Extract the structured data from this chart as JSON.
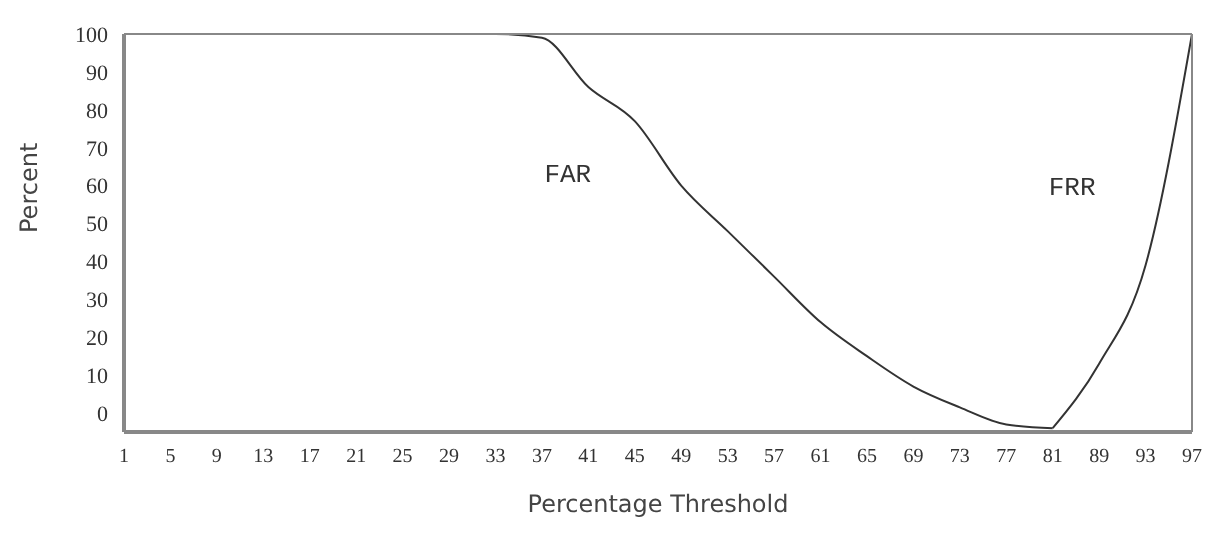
{
  "chart_data": {
    "type": "line",
    "xlabel": "Percentage Threshold",
    "ylabel": "Percent",
    "categories": [
      "1",
      "5",
      "9",
      "13",
      "17",
      "21",
      "25",
      "29",
      "33",
      "37",
      "41",
      "45",
      "49",
      "53",
      "57",
      "61",
      "65",
      "69",
      "73",
      "77",
      "81",
      "89",
      "93",
      "97"
    ],
    "series": [
      {
        "name": "FAR",
        "color": "#333333",
        "values": [
          100,
          100,
          100,
          100,
          100,
          100,
          100,
          100,
          100,
          99,
          86,
          77,
          60,
          48,
          36,
          24,
          15,
          7,
          1.5,
          -3,
          -4,
          null,
          null,
          null
        ]
      },
      {
        "name": "FRR",
        "color": "#333333",
        "values": [
          null,
          null,
          null,
          null,
          null,
          null,
          null,
          null,
          null,
          null,
          null,
          null,
          null,
          null,
          null,
          null,
          null,
          null,
          null,
          null,
          -4,
          13,
          39,
          100
        ]
      }
    ],
    "ylim": [
      -5,
      100
    ],
    "yticks": [
      0,
      10,
      20,
      30,
      40,
      50,
      60,
      70,
      80,
      90,
      100
    ],
    "marker": "none",
    "line_style": "solid"
  }
}
